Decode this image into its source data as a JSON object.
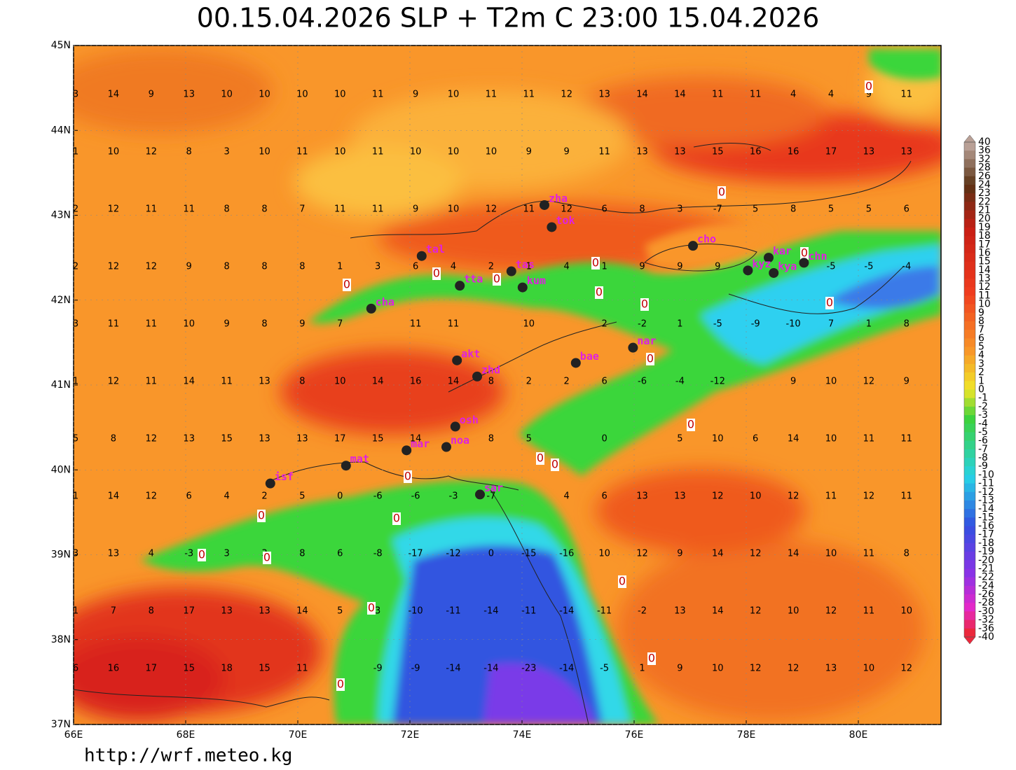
{
  "title": "00.15.04.2026 SLP + T2m C 23:00 15.04.2026",
  "footer": "http://wrf.meteo.kg",
  "map": {
    "xlim": [
      66,
      81.475
    ],
    "ylim": [
      37,
      45
    ],
    "xticks": [
      {
        "value": 66,
        "label": "66E"
      },
      {
        "value": 68,
        "label": "68E"
      },
      {
        "value": 70,
        "label": "70E"
      },
      {
        "value": 72,
        "label": "72E"
      },
      {
        "value": 74,
        "label": "74E"
      },
      {
        "value": 76,
        "label": "76E"
      },
      {
        "value": 78,
        "label": "78E"
      },
      {
        "value": 80,
        "label": "80E"
      }
    ],
    "yticks": [
      {
        "value": 37,
        "label": "37N"
      },
      {
        "value": 38,
        "label": "38N"
      },
      {
        "value": 39,
        "label": "39N"
      },
      {
        "value": 40,
        "label": "40N"
      },
      {
        "value": 41,
        "label": "41N"
      },
      {
        "value": 42,
        "label": "42N"
      },
      {
        "value": 43,
        "label": "43N"
      },
      {
        "value": 44,
        "label": "44N"
      },
      {
        "value": 45,
        "label": "45N"
      }
    ]
  },
  "cities": [
    {
      "name": "zha",
      "lon": 74.4,
      "lat": 43.12
    },
    {
      "name": "tok",
      "lon": 74.53,
      "lat": 42.86
    },
    {
      "name": "tal",
      "lon": 72.21,
      "lat": 42.52
    },
    {
      "name": "cho",
      "lon": 77.05,
      "lat": 42.64
    },
    {
      "name": "kar",
      "lon": 78.4,
      "lat": 42.5
    },
    {
      "name": "chn",
      "lon": 79.03,
      "lat": 42.44
    },
    {
      "name": "kyz",
      "lon": 78.03,
      "lat": 42.35
    },
    {
      "name": "kya",
      "lon": 78.49,
      "lat": 42.32
    },
    {
      "name": "tas",
      "lon": 73.81,
      "lat": 42.34
    },
    {
      "name": "tta",
      "lon": 72.89,
      "lat": 42.17
    },
    {
      "name": "kum",
      "lon": 74.01,
      "lat": 42.15
    },
    {
      "name": "cha",
      "lon": 71.31,
      "lat": 41.9
    },
    {
      "name": "nar",
      "lon": 75.98,
      "lat": 41.44
    },
    {
      "name": "bae",
      "lon": 74.96,
      "lat": 41.26
    },
    {
      "name": "akt",
      "lon": 72.84,
      "lat": 41.29
    },
    {
      "name": "zhd",
      "lon": 73.2,
      "lat": 41.1
    },
    {
      "name": "osh",
      "lon": 72.81,
      "lat": 40.51
    },
    {
      "name": "mar",
      "lon": 71.94,
      "lat": 40.23
    },
    {
      "name": "noa",
      "lon": 72.65,
      "lat": 40.27
    },
    {
      "name": "mat",
      "lon": 70.86,
      "lat": 40.05
    },
    {
      "name": "isf",
      "lon": 69.51,
      "lat": 39.84
    },
    {
      "name": "sar",
      "lon": 73.25,
      "lat": 39.71
    }
  ],
  "temperature_grid": {
    "rows": [
      [
        3,
        14,
        9,
        13,
        10,
        10,
        10,
        10,
        11,
        9,
        10,
        11,
        11,
        12,
        13,
        14,
        14,
        11,
        11,
        4,
        4,
        9,
        11
      ],
      [
        1,
        10,
        12,
        8,
        3,
        10,
        11,
        10,
        11,
        10,
        10,
        10,
        9,
        9,
        11,
        13,
        13,
        15,
        16,
        16,
        17,
        13,
        13
      ],
      [
        2,
        12,
        11,
        11,
        8,
        8,
        7,
        11,
        11,
        9,
        10,
        12,
        11,
        12,
        6,
        8,
        3,
        -7,
        5,
        8,
        5,
        5,
        6
      ],
      [
        2,
        12,
        12,
        9,
        8,
        8,
        8,
        1,
        3,
        6,
        4,
        2,
        1,
        4,
        1,
        9,
        9,
        9,
        null,
        null,
        -5,
        -5,
        -4
      ],
      [
        3,
        11,
        11,
        10,
        9,
        8,
        9,
        7,
        null,
        11,
        11,
        null,
        10,
        null,
        2,
        -2,
        1,
        -5,
        -9,
        -10,
        7,
        1,
        8
      ],
      [
        1,
        12,
        11,
        14,
        11,
        13,
        8,
        10,
        14,
        16,
        14,
        8,
        2,
        2,
        6,
        -6,
        -4,
        -12,
        null,
        9,
        10,
        12,
        9
      ],
      [
        5,
        8,
        12,
        13,
        15,
        13,
        13,
        17,
        15,
        14,
        null,
        8,
        5,
        null,
        0,
        null,
        5,
        10,
        6,
        14,
        10,
        11,
        11
      ],
      [
        1,
        14,
        12,
        6,
        4,
        2,
        5,
        0,
        -6,
        -6,
        -3,
        -7,
        null,
        4,
        6,
        13,
        13,
        12,
        10,
        12,
        11,
        12,
        11
      ],
      [
        3,
        13,
        4,
        -3,
        3,
        3,
        8,
        6,
        -8,
        -17,
        -12,
        0,
        -15,
        -16,
        10,
        12,
        9,
        14,
        12,
        14,
        10,
        11,
        8
      ],
      [
        1,
        7,
        8,
        17,
        13,
        13,
        14,
        5,
        3,
        -10,
        -11,
        -14,
        -11,
        -14,
        -11,
        -2,
        13,
        14,
        12,
        10,
        12,
        11,
        10
      ],
      [
        6,
        16,
        17,
        15,
        18,
        15,
        11,
        null,
        -9,
        -9,
        -14,
        -14,
        -23,
        -14,
        -5,
        1,
        9,
        10,
        12,
        12,
        13,
        10,
        12
      ]
    ]
  },
  "contour_labels": [
    0,
    0,
    0,
    0,
    0,
    0,
    0,
    0,
    0,
    0,
    0,
    0,
    0,
    0,
    0,
    0,
    0,
    0,
    0,
    0,
    0,
    0,
    0
  ],
  "colorbar": {
    "labels": [
      40,
      36,
      32,
      28,
      26,
      24,
      23,
      22,
      21,
      20,
      19,
      18,
      17,
      16,
      15,
      14,
      13,
      12,
      11,
      10,
      9,
      8,
      7,
      6,
      5,
      4,
      3,
      2,
      1,
      0,
      -1,
      -2,
      -3,
      -4,
      -5,
      -6,
      -7,
      -8,
      -9,
      -10,
      -11,
      -12,
      -13,
      -14,
      -15,
      -16,
      -17,
      -18,
      -19,
      -20,
      -21,
      -22,
      -24,
      -26,
      -28,
      -30,
      -32,
      -36,
      -40
    ]
  }
}
